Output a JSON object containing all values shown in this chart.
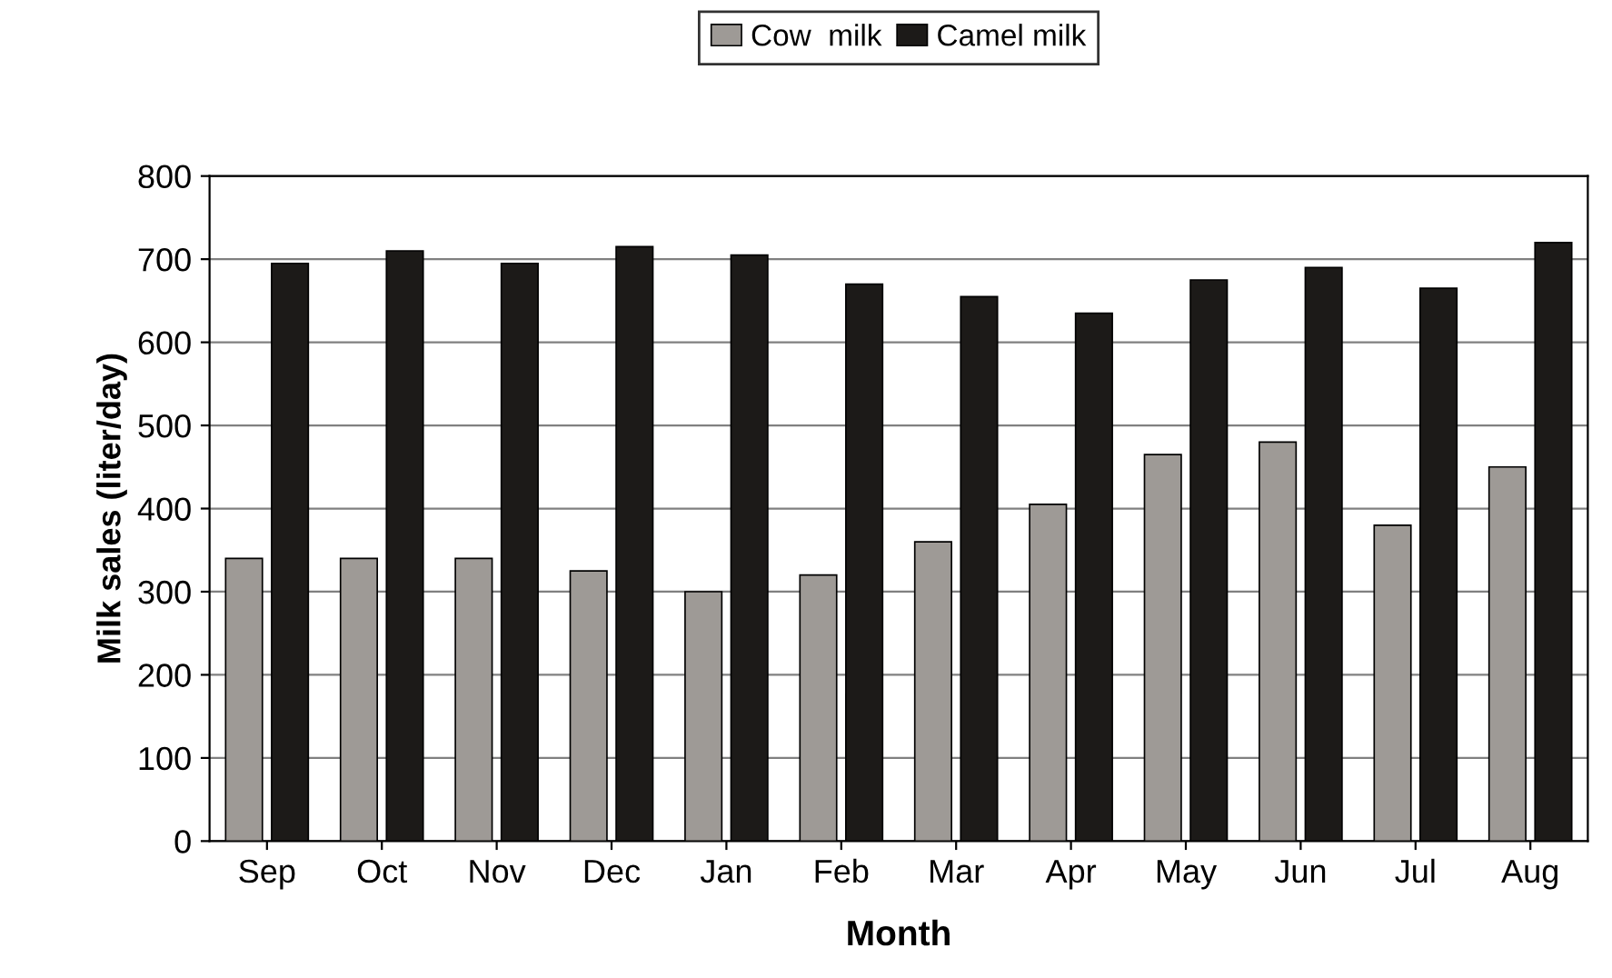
{
  "chart_data": {
    "type": "bar",
    "xlabel": "Month",
    "ylabel": "Milk sales (liter/day)",
    "categories": [
      "Sep",
      "Oct",
      "Nov",
      "Dec",
      "Jan",
      "Feb",
      "Mar",
      "Apr",
      "May",
      "Jun",
      "Jul",
      "Aug"
    ],
    "series": [
      {
        "name": "Cow  milk",
        "color": "#9e9a96",
        "values": [
          340,
          340,
          340,
          325,
          300,
          320,
          360,
          405,
          465,
          480,
          380,
          450
        ]
      },
      {
        "name": "Camel milk",
        "color": "#1c1a18",
        "values": [
          695,
          710,
          695,
          715,
          705,
          670,
          655,
          635,
          675,
          690,
          665,
          720
        ]
      }
    ],
    "ylim": [
      0,
      800
    ],
    "yticks": [
      0,
      100,
      200,
      300,
      400,
      500,
      600,
      700,
      800
    ],
    "grid": "y",
    "legend": "top"
  }
}
